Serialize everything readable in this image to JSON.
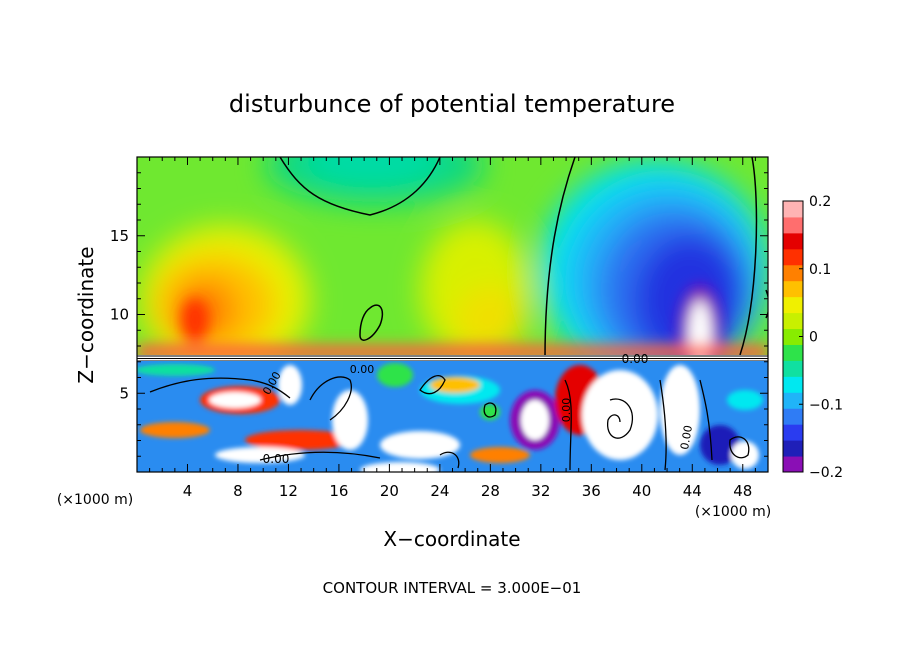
{
  "chart_data": {
    "type": "heatmap",
    "title": "disturbunce of potential temperature",
    "xlabel": "X−coordinate",
    "ylabel": "Z−coordinate",
    "x_unit_left": "(×1000 m)",
    "x_unit_right": "(×1000 m)",
    "footer": "CONTOUR INTERVAL = 3.000E−01",
    "xlim": [
      0,
      50
    ],
    "ylim": [
      0,
      20
    ],
    "x_ticks": [
      4,
      8,
      12,
      16,
      20,
      24,
      28,
      32,
      36,
      40,
      44,
      48
    ],
    "y_ticks": [
      5,
      10,
      15
    ],
    "colorbar": {
      "range": [
        -0.2,
        0.2
      ],
      "tick_values": [
        0.2,
        0.1,
        0,
        -0.1,
        -0.2
      ],
      "tick_labels": [
        "0.2",
        "0.1",
        "0",
        "−0.1",
        "−0.2"
      ],
      "colors": [
        "#8a0fb5",
        "#1f1fb8",
        "#2a3cf0",
        "#2f7cf5",
        "#20b4f8",
        "#00e8f0",
        "#10e0a0",
        "#2ee34a",
        "#88ec00",
        "#c8f000",
        "#f0f000",
        "#ffc000",
        "#ff8000",
        "#ff3000",
        "#e40000",
        "#ff6e6e",
        "#ffb4b4"
      ]
    },
    "contour_labels": [
      "0.00",
      "0.00",
      "0.00",
      "0.00",
      "0.00",
      "0.00"
    ],
    "regions": [
      {
        "name": "upper-left warm lobe",
        "x": [
          1,
          16
        ],
        "z": [
          7.5,
          17
        ],
        "peak_value": 0.13
      },
      {
        "name": "upper-centre cool trough",
        "x": [
          10,
          25
        ],
        "z": [
          16,
          20
        ],
        "peak_value": -0.06
      },
      {
        "name": "upper-centre warm band",
        "x": [
          22,
          30
        ],
        "z": [
          8,
          15
        ],
        "peak_value": 0.07
      },
      {
        "name": "upper-right cold plume",
        "x": [
          33,
          49
        ],
        "z": [
          7.5,
          20
        ],
        "peak_value": -0.2
      },
      {
        "name": "lower-layer turbulent mixing",
        "x": [
          0,
          50
        ],
        "z": [
          0,
          7
        ],
        "peak_value": 0.2,
        "min_value": -0.2
      }
    ]
  }
}
